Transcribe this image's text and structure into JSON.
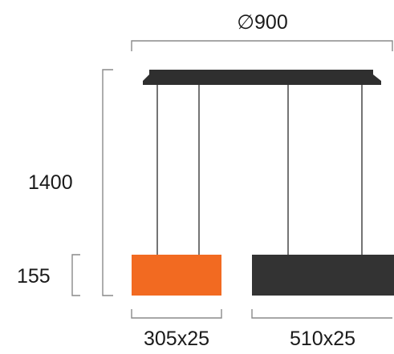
{
  "dimensions": {
    "diameter": "∅900",
    "height": "1400",
    "shade_height": "155",
    "orange_shade_size": "305x25",
    "dark_shade_size": "510x25"
  },
  "colors": {
    "canopy": "#2f2f2f",
    "orange_shade": "#f26a21",
    "dark_shade": "#333333",
    "cable": "#2a2a2a",
    "dimension_line": "#8a8a8a",
    "text": "#1a1a1a"
  }
}
